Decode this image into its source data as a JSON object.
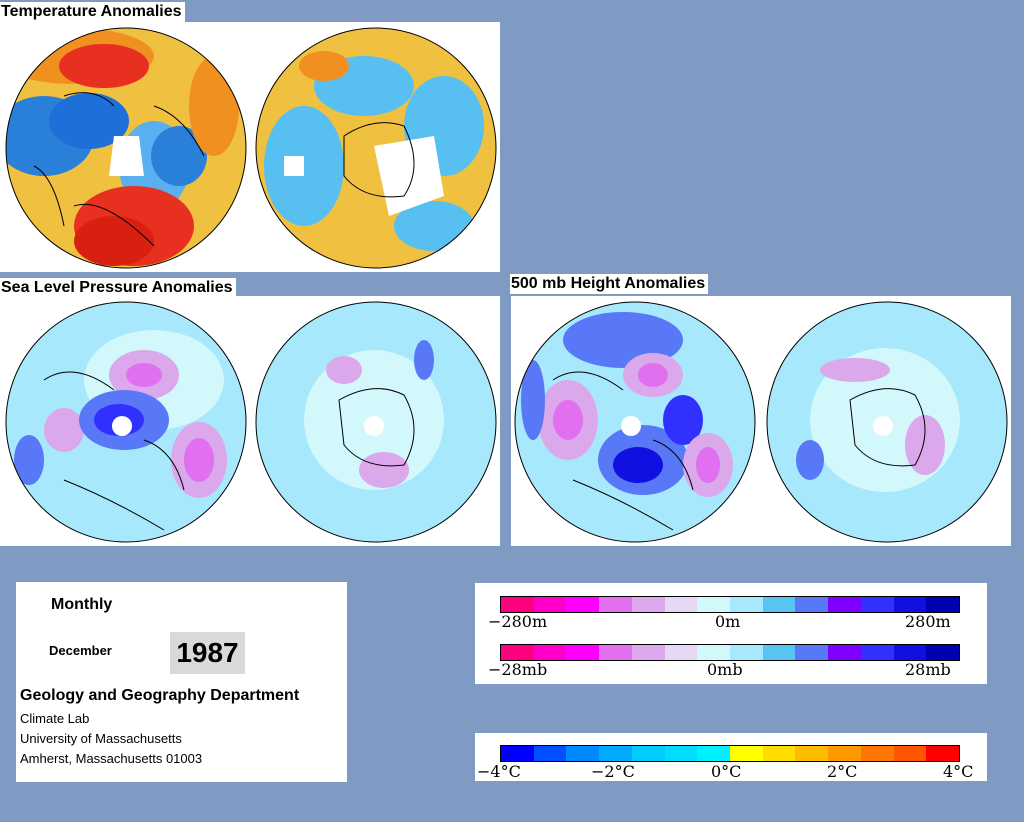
{
  "titles": {
    "temperature": "Temperature Anomalies",
    "slp": "Sea Level Pressure Anomalies",
    "height500": "500 mb Height Anomalies"
  },
  "info": {
    "mode": "Monthly",
    "month": "December",
    "year": "1987",
    "department": "Geology and Geography Department",
    "lab": "Climate Lab",
    "university": "University of Massachusetts",
    "address": "Amherst, Massachusetts 01003"
  },
  "legend_height_pressure": {
    "colors": [
      "#ff0080",
      "#ff00cc",
      "#ff00ff",
      "#e070f0",
      "#dca8ec",
      "#e4d8f4",
      "#d2f8fc",
      "#a8e8fc",
      "#58c4f0",
      "#5878f8",
      "#8000ff",
      "#3030ff",
      "#1010e0",
      "#0000b0"
    ],
    "height_labels": [
      "−280m",
      "0m",
      "280m"
    ],
    "pressure_labels": [
      "−28mb",
      "0mb",
      "28mb"
    ]
  },
  "legend_temperature": {
    "colors": [
      "#0000ff",
      "#0050ff",
      "#0088ff",
      "#00aaff",
      "#00ccff",
      "#00ddff",
      "#00f0ff",
      "#ffff00",
      "#ffdd00",
      "#ffbb00",
      "#ff9900",
      "#ff7700",
      "#ff5500",
      "#ff0000"
    ],
    "labels": [
      "−4°C",
      "−2°C",
      "0°C",
      "2°C",
      "4°C"
    ]
  },
  "colors": {
    "background": "#7f9ac3",
    "warm": "#e83020",
    "cool": "#2a7fd8",
    "neutral": "#f0c040",
    "low": "#5060e0",
    "high": "#e060d0",
    "pale": "#d2f8fc"
  }
}
